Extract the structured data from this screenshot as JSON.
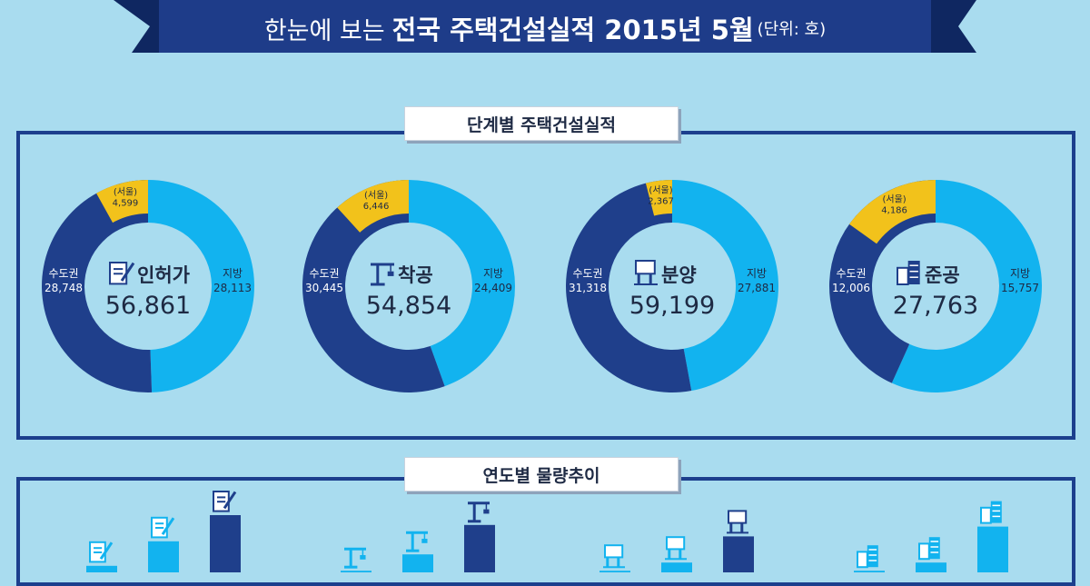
{
  "header": {
    "title_normal": "한눈에 보는",
    "title_bold": "전국 주택건설실적 2015년 5월",
    "unit": "(단위: 호)"
  },
  "sections": {
    "stage": "단계별 주택건설실적",
    "trend": "연도별 물량추이"
  },
  "colors": {
    "capital": "#1f3f8b",
    "local": "#12b3ef",
    "seoul": "#f2c21b",
    "banner": "#1e3c89",
    "background": "#a9dcef"
  },
  "chart_data": [
    {
      "type": "pie",
      "center_label": "인허가",
      "total": "56,861",
      "icon": "document-pen-icon",
      "slices": [
        {
          "label": "지방",
          "value": 28113,
          "display": "28,113"
        },
        {
          "label": "수도권",
          "value": 28748,
          "display": "28,748"
        }
      ],
      "seoul": {
        "label": "(서울)",
        "value": 4599,
        "display": "4,599"
      }
    },
    {
      "type": "pie",
      "center_label": "착공",
      "total": "54,854",
      "icon": "crane-icon",
      "slices": [
        {
          "label": "지방",
          "value": 24409,
          "display": "24,409"
        },
        {
          "label": "수도권",
          "value": 30445,
          "display": "30,445"
        }
      ],
      "seoul": {
        "label": "(서울)",
        "value": 6446,
        "display": "6,446"
      }
    },
    {
      "type": "pie",
      "center_label": "분양",
      "total": "59,199",
      "icon": "signboard-icon",
      "slices": [
        {
          "label": "지방",
          "value": 27881,
          "display": "27,881"
        },
        {
          "label": "수도권",
          "value": 31318,
          "display": "31,318"
        }
      ],
      "seoul": {
        "label": "(서울)",
        "value": 2367,
        "display": "2,367"
      }
    },
    {
      "type": "pie",
      "center_label": "준공",
      "total": "27,763",
      "icon": "building-icon",
      "slices": [
        {
          "label": "지방",
          "value": 15757,
          "display": "15,757"
        },
        {
          "label": "수도권",
          "value": 12006,
          "display": "12,006"
        }
      ],
      "seoul": {
        "label": "(서울)",
        "value": 4186,
        "display": "4,186"
      }
    }
  ],
  "trend_bars": [
    {
      "icon": "document-pen-icon",
      "colors": [
        "#12b3ef",
        "#12b3ef",
        "#1f3f8b"
      ],
      "relative": [
        0.08,
        0.38,
        0.7
      ]
    },
    {
      "icon": "crane-icon",
      "colors": [
        "#12b3ef",
        "#12b3ef",
        "#1f3f8b"
      ],
      "relative": [
        0.02,
        0.22,
        0.58
      ]
    },
    {
      "icon": "signboard-icon",
      "colors": [
        "#12b3ef",
        "#12b3ef",
        "#1f3f8b"
      ],
      "relative": [
        0.02,
        0.12,
        0.44
      ]
    },
    {
      "icon": "building-icon",
      "colors": [
        "#12b3ef",
        "#12b3ef",
        "#12b3ef"
      ],
      "relative": [
        0.02,
        0.12,
        0.56
      ]
    }
  ]
}
